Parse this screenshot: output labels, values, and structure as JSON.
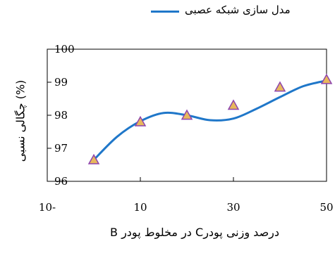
{
  "chart_data": {
    "type": "line",
    "title": "",
    "xlabel": "درصد وزنی پودرC در مخلوط پودر B",
    "ylabel": "چگالی نسبی (%)",
    "xlim": [
      -10,
      50
    ],
    "ylim": [
      96,
      100
    ],
    "x_ticks": [
      -10,
      10,
      30,
      50
    ],
    "x_tick_labels": [
      "10-",
      "10",
      "30",
      "50"
    ],
    "y_ticks": [
      96,
      97,
      98,
      99,
      100
    ],
    "y_tick_labels": [
      "96",
      "97",
      "98",
      "99",
      "100"
    ],
    "legend_position": "top",
    "grid": false,
    "series": [
      {
        "name": "مدل سازی شبکه عصبی",
        "kind": "line",
        "color": "#1f77c9",
        "x": [
          0,
          5,
          10,
          15,
          20,
          25,
          30,
          35,
          40,
          45,
          50
        ],
        "y": [
          96.65,
          97.35,
          97.82,
          98.07,
          98.0,
          97.85,
          97.9,
          98.2,
          98.55,
          98.88,
          99.05
        ]
      },
      {
        "name": "",
        "kind": "points",
        "marker": "triangle",
        "color": "#e8b85c",
        "edge_color": "#8e44ad",
        "x": [
          0,
          10,
          20,
          30,
          40,
          50
        ],
        "y": [
          96.65,
          97.8,
          98.0,
          98.3,
          98.85,
          99.08
        ]
      }
    ]
  }
}
